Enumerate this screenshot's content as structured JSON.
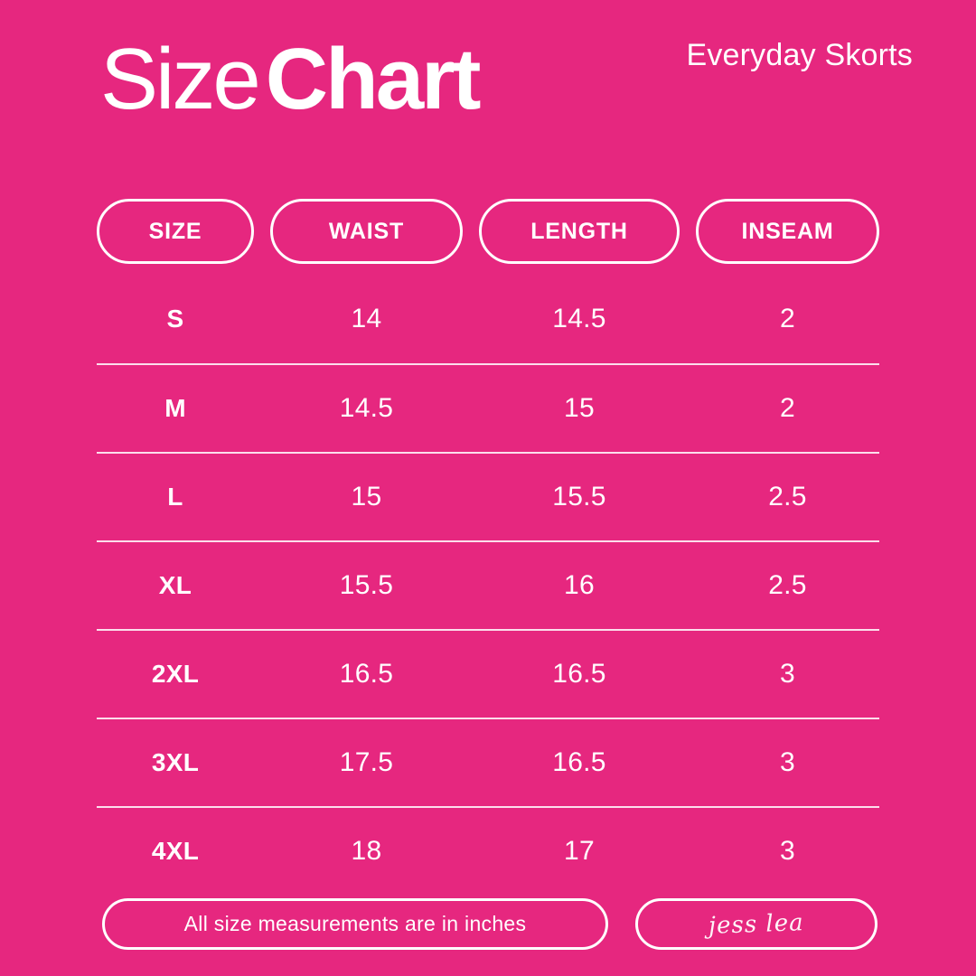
{
  "theme": {
    "background_color": "#E6277F",
    "text_color": "#FFFFFF"
  },
  "header": {
    "title_light": "Size",
    "title_bold": "Chart",
    "product_name": "Everyday Skorts"
  },
  "table": {
    "columns": [
      "SIZE",
      "WAIST",
      "LENGTH",
      "INSEAM"
    ],
    "rows": [
      [
        "S",
        "14",
        "14.5",
        "2"
      ],
      [
        "M",
        "14.5",
        "15",
        "2"
      ],
      [
        "L",
        "15",
        "15.5",
        "2.5"
      ],
      [
        "XL",
        "15.5",
        "16",
        "2.5"
      ],
      [
        "2XL",
        "16.5",
        "16.5",
        "3"
      ],
      [
        "3XL",
        "17.5",
        "16.5",
        "3"
      ],
      [
        "4XL",
        "18",
        "17",
        "3"
      ]
    ]
  },
  "footer": {
    "note": "All size measurements are in inches",
    "signature": "jess lea"
  },
  "chart_data": {
    "type": "table",
    "title": "Size Chart",
    "subtitle": "Everyday Skorts",
    "columns": [
      "SIZE",
      "WAIST",
      "LENGTH",
      "INSEAM"
    ],
    "rows": [
      {
        "size": "S",
        "waist": 14,
        "length": 14.5,
        "inseam": 2
      },
      {
        "size": "M",
        "waist": 14.5,
        "length": 15,
        "inseam": 2
      },
      {
        "size": "L",
        "waist": 15,
        "length": 15.5,
        "inseam": 2.5
      },
      {
        "size": "XL",
        "waist": 15.5,
        "length": 16,
        "inseam": 2.5
      },
      {
        "size": "2XL",
        "waist": 16.5,
        "length": 16.5,
        "inseam": 3
      },
      {
        "size": "3XL",
        "waist": 17.5,
        "length": 16.5,
        "inseam": 3
      },
      {
        "size": "4XL",
        "waist": 18,
        "length": 17,
        "inseam": 3
      }
    ],
    "units": "inches",
    "note": "All size measurements are in inches",
    "brand_signature": "jess lea"
  }
}
